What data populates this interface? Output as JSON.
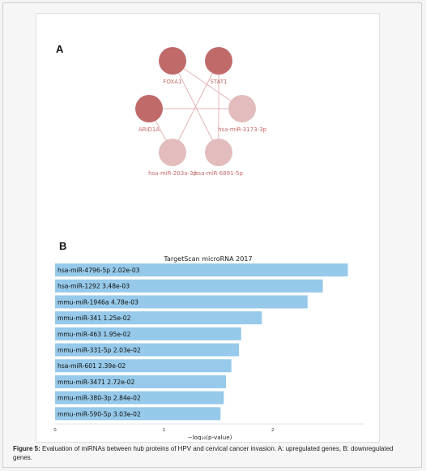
{
  "panel_a": {
    "label": "A",
    "nodes": [
      {
        "id": "FOXA1",
        "label": "FOXA1",
        "kind": "up"
      },
      {
        "id": "STAT1",
        "label": "STAT1",
        "kind": "up"
      },
      {
        "id": "ARID1A",
        "label": "ARID1A",
        "kind": "up"
      },
      {
        "id": "hsa-miR-3173-3p",
        "label": "hsa-miR-3173-3p",
        "kind": "mirna"
      },
      {
        "id": "hsa-miR-203a-3p",
        "label": "hsa-miR-203a-3p",
        "kind": "mirna"
      },
      {
        "id": "hsa-miR-6891-5p",
        "label": "hsa-miR-6891-5p",
        "kind": "mirna"
      }
    ],
    "edges": [
      [
        "FOXA1",
        "hsa-miR-3173-3p"
      ],
      [
        "FOXA1",
        "hsa-miR-6891-5p"
      ],
      [
        "STAT1",
        "hsa-miR-203a-3p"
      ],
      [
        "STAT1",
        "hsa-miR-6891-5p"
      ],
      [
        "ARID1A",
        "hsa-miR-3173-3p"
      ],
      [
        "ARID1A",
        "hsa-miR-203a-3p"
      ]
    ],
    "colors": {
      "up": "#c06a6a",
      "mirna": "#e3bdbd",
      "edge": "#e4b4b4",
      "label": "#c46a6a"
    }
  },
  "panel_b": {
    "label": "B",
    "chart_data": {
      "type": "bar",
      "orientation": "horizontal",
      "title": "TargetScan microRNA 2017",
      "xlabel": "−log₁₀(p-value)",
      "xlim": [
        0,
        2.85
      ],
      "xticks": [
        "0",
        "1",
        "2"
      ],
      "xtick_values": [
        0,
        1,
        2
      ],
      "bar_color": "#96c9ea",
      "categories": [
        "hsa-miR-4796-5p",
        "hsa-miR-1292",
        "mmu-miR-1946a",
        "mmu-miR-341",
        "mmu-miR-463",
        "mmu-miR-331-5p",
        "hsa-miR-601",
        "mmu-miR-3471",
        "mmu-miR-380-3p",
        "mmu-miR-590-5p"
      ],
      "pvalues": [
        "2.02e-03",
        "3.48e-03",
        "4.78e-03",
        "1.25e-02",
        "1.95e-02",
        "2.03e-02",
        "2.39e-02",
        "2.72e-02",
        "2.84e-02",
        "3.03e-02"
      ],
      "values": [
        2.69,
        2.46,
        2.32,
        1.9,
        1.71,
        1.69,
        1.62,
        1.57,
        1.55,
        1.52
      ]
    }
  },
  "caption": {
    "prefix": "Figure 5:",
    "text": " Evaluation of miRNAs between hub proteins of HPV and cervical cancer invasion. A: upregulated genes, B: downregulated genes."
  }
}
